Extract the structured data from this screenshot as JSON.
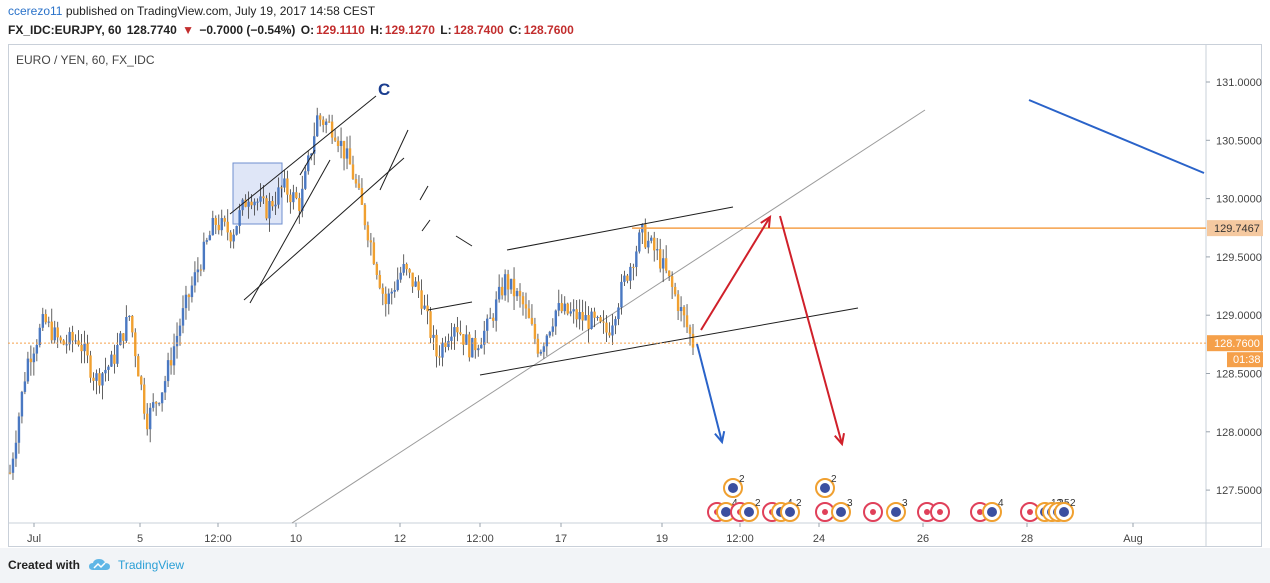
{
  "header": {
    "author": "ccerezo11",
    "published_text": "published on TradingView.com, July 19, 2017 14:58 CEST",
    "symbol": "FX_IDC:EURJPY, 60",
    "price": "128.7740",
    "change_arrow": "▼",
    "change": "−0.7000 (−0.54%)",
    "open_label": "O:",
    "open": "129.1110",
    "high_label": "H:",
    "high": "129.1270",
    "low_label": "L:",
    "low": "128.7400",
    "close_label": "C:",
    "close": "128.7600"
  },
  "chart_label": "EURO / YEN, 60, FX_IDC",
  "footer": {
    "created_with": "Created with",
    "brand": "TradingView"
  },
  "colors": {
    "up": "#4a78c2",
    "down": "#f0a030",
    "accent": "#2a72c9",
    "red": "#d0202a",
    "orange_line": "#f5a04a"
  },
  "chart_data": {
    "type": "candlestick",
    "symbol": "EURJPY",
    "timeframe": "60",
    "title": "EURO / YEN, 60, FX_IDC",
    "x_tick_labels": [
      "Jul",
      "5",
      "12:00",
      "10",
      "12",
      "12:00",
      "17",
      "19",
      "12:00",
      "24",
      "26",
      "28",
      "Aug"
    ],
    "y_tick_labels": [
      "127.5000",
      "128.0000",
      "128.5000",
      "129.0000",
      "129.5000",
      "130.0000",
      "130.5000",
      "131.0000"
    ],
    "ylim": [
      127.2,
      131.2
    ],
    "price_path": [
      127.65,
      128.6,
      128.95,
      128.75,
      128.8,
      128.45,
      128.6,
      129.0,
      128.1,
      128.4,
      128.95,
      129.4,
      129.8,
      129.7,
      130.05,
      129.9,
      130.1,
      129.95,
      130.7,
      130.6,
      130.25,
      129.7,
      129.1,
      129.4,
      129.2,
      128.65,
      128.95,
      128.7,
      128.9,
      129.3,
      129.1,
      128.7,
      129.05,
      129.0,
      128.95,
      128.85,
      129.3,
      129.7,
      129.5,
      129.15,
      128.76
    ],
    "candle_colors": {
      "up": "#4a78c2",
      "down": "#f0a030"
    },
    "current_price": {
      "label": "128.7600",
      "value": 128.76,
      "timer": "01:38",
      "color": "#f5a04a"
    },
    "marked_level": {
      "label": "129.7467",
      "value": 129.7467,
      "color": "#f5a04a"
    },
    "annotations": [
      {
        "text": "C",
        "color": "#1a3d8f"
      }
    ],
    "event_markers": [
      {
        "row": "upper",
        "counts": [
          "2",
          "2"
        ]
      },
      {
        "row": "lower",
        "counts": [
          "4",
          "2",
          "4",
          "2",
          "3",
          "3",
          "4",
          "13",
          "2",
          "5",
          "2"
        ]
      }
    ],
    "grid": false,
    "legend": "none"
  }
}
